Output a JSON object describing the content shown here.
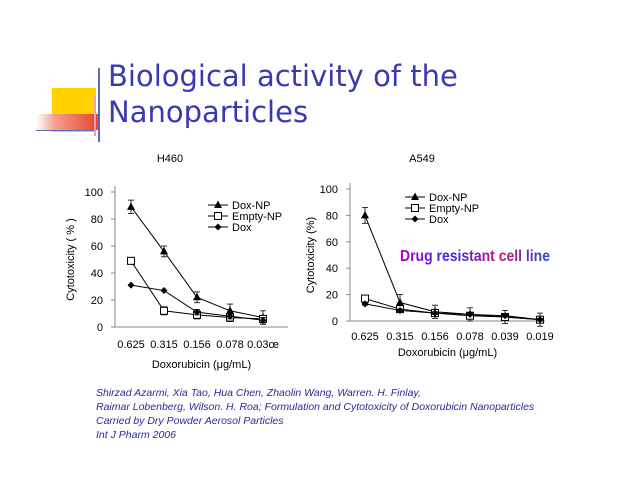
{
  "slide": {
    "title_line1": "Biological activity of the",
    "title_line2": "Nanoparticles",
    "citation": [
      "Shirzad Azarmi, Xia Tao, Hua Chen, Zhaolin Wang, Warren. H. Finlay,",
      "Raimar Lobenberg, Wilson. H. Roa; Formulation and Cytotoxicity of Doxorubicin Nanoparticles",
      "Carried by Dry Powder Aerosol Particles",
      "Int J Pharm 2006"
    ]
  },
  "colors": {
    "title": "#3a3ab0",
    "citation": "#2a2a9c",
    "deco_yellow": "#ffd200",
    "deco_red": "#e8452c",
    "deco_blue": "#5a6ab8",
    "annotation_gradient": [
      "#c000c0",
      "#3030e0",
      "#d01070",
      "#2050d0"
    ]
  },
  "chart_data": [
    {
      "type": "line",
      "title": "H460",
      "xlabel": "Doxorubicin (μg/mL)",
      "ylabel": "Cytotoxicity  ( % )",
      "categories": [
        "0.625",
        "0.315",
        "0.156",
        "0.078",
        "0.039"
      ],
      "category_labels_shown": [
        "0.625",
        "0.315",
        "0.156",
        "0.078",
        "0.03œ"
      ],
      "ylim": [
        0,
        100
      ],
      "yticks": [
        0,
        20,
        40,
        60,
        80,
        100
      ],
      "legend_position": "top-right",
      "grid": false,
      "series": [
        {
          "name": "Dox-NP",
          "marker": "triangle",
          "values": [
            89,
            56,
            22,
            12,
            7
          ],
          "errors": [
            5,
            4,
            4,
            5,
            5
          ]
        },
        {
          "name": "Empty-NP",
          "marker": "square",
          "values": [
            49,
            12,
            9,
            7,
            6
          ],
          "errors": [
            2,
            3,
            3,
            3,
            2
          ]
        },
        {
          "name": "Dox",
          "marker": "diamond",
          "values": [
            31,
            27,
            11,
            8,
            5
          ],
          "errors": [
            0,
            0,
            2,
            2,
            2
          ]
        }
      ]
    },
    {
      "type": "line",
      "title": "A549",
      "xlabel": "Doxorubicin (μg/mL)",
      "ylabel": "Cytotoxicity (%)",
      "categories": [
        "0.625",
        "0.315",
        "0.156",
        "0.078",
        "0.039",
        "0.019"
      ],
      "category_labels_shown": [
        "0.625",
        "0.315",
        "0.156",
        "0.078",
        "0.039",
        "0.019"
      ],
      "ylim": [
        0,
        100
      ],
      "yticks": [
        0,
        20,
        40,
        60,
        80,
        100
      ],
      "legend_position": "top-right",
      "grid": false,
      "annotation": "Drug resistant cell line",
      "series": [
        {
          "name": "Dox-NP",
          "marker": "triangle",
          "values": [
            80,
            14,
            7,
            5,
            3,
            1
          ],
          "errors": [
            6,
            6,
            5,
            5,
            5,
            5
          ]
        },
        {
          "name": "Empty-NP",
          "marker": "square",
          "values": [
            17,
            9,
            6,
            4,
            3,
            1
          ],
          "errors": [
            2,
            2,
            2,
            2,
            2,
            1
          ]
        },
        {
          "name": "Dox",
          "marker": "diamond",
          "values": [
            13,
            8,
            6,
            5,
            4,
            1
          ],
          "errors": [
            1,
            1,
            1,
            1,
            1,
            1
          ]
        }
      ]
    }
  ]
}
